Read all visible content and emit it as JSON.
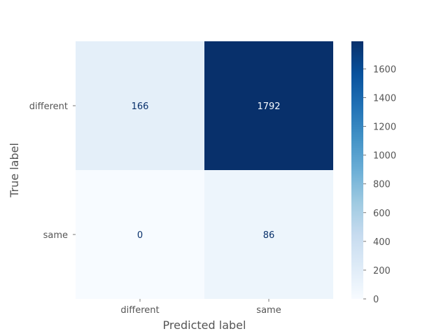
{
  "chart_data": {
    "type": "heatmap",
    "title": "",
    "xlabel": "Predicted label",
    "ylabel": "True label",
    "x_categories": [
      "different",
      "same"
    ],
    "y_categories": [
      "different",
      "same"
    ],
    "values": [
      [
        166,
        1792
      ],
      [
        0,
        86
      ]
    ],
    "colorbar": {
      "range": [
        0,
        1792
      ],
      "ticks": [
        0,
        200,
        400,
        600,
        800,
        1000,
        1200,
        1400,
        1600
      ]
    },
    "colormap": "Blues",
    "grid": false,
    "colors": {
      "low": "#f7fbff",
      "high": "#08306b",
      "dark_text": "#08306b",
      "light_text": "#f7fbff",
      "tick_text": "#555555"
    }
  }
}
